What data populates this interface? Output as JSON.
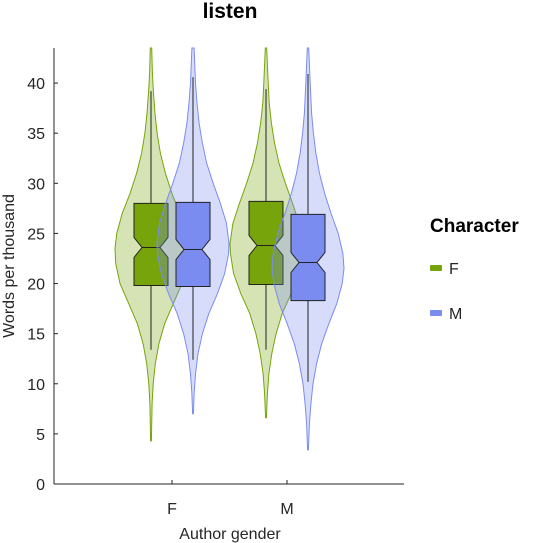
{
  "chart_data": {
    "type": "violin",
    "title": "listen",
    "xlabel": "Author gender",
    "ylabel": "Words per thousand",
    "categories": [
      "F",
      "M"
    ],
    "ylim": [
      0,
      43.5
    ],
    "yticks": [
      0,
      5,
      10,
      15,
      20,
      25,
      30,
      35,
      40
    ],
    "grid": false,
    "legend": {
      "title": "Character",
      "position": "right"
    },
    "series": [
      {
        "name": "F",
        "color": "#76a40a",
        "groups": [
          {
            "category": "F",
            "min": 4.3,
            "whisker_low": 13.4,
            "q1": 19.8,
            "median": 23.6,
            "q3": 28.0,
            "whisker_high": 39.2,
            "max": 43.5,
            "notch": [
              22.6,
              24.6
            ],
            "density": [
              [
                4.3,
                0.01
              ],
              [
                8,
                0.03
              ],
              [
                10,
                0.06
              ],
              [
                12,
                0.12
              ],
              [
                14,
                0.22
              ],
              [
                16,
                0.38
              ],
              [
                18,
                0.62
              ],
              [
                20,
                0.86
              ],
              [
                22,
                0.98
              ],
              [
                23.5,
                1.0
              ],
              [
                25,
                0.95
              ],
              [
                27,
                0.8
              ],
              [
                29,
                0.58
              ],
              [
                31,
                0.4
              ],
              [
                33,
                0.26
              ],
              [
                35,
                0.17
              ],
              [
                37,
                0.11
              ],
              [
                39,
                0.07
              ],
              [
                41,
                0.04
              ],
              [
                43.5,
                0.02
              ]
            ]
          },
          {
            "category": "M",
            "min": 6.6,
            "whisker_low": 13.4,
            "q1": 19.9,
            "median": 23.8,
            "q3": 28.2,
            "whisker_high": 39.4,
            "max": 43.5,
            "notch": [
              22.8,
              24.8
            ],
            "density": [
              [
                6.6,
                0.01
              ],
              [
                9,
                0.04
              ],
              [
                11,
                0.08
              ],
              [
                13,
                0.16
              ],
              [
                15,
                0.28
              ],
              [
                17,
                0.45
              ],
              [
                19,
                0.7
              ],
              [
                21,
                0.9
              ],
              [
                23,
                0.99
              ],
              [
                24,
                1.0
              ],
              [
                26,
                0.92
              ],
              [
                28,
                0.74
              ],
              [
                30,
                0.54
              ],
              [
                32,
                0.36
              ],
              [
                34,
                0.24
              ],
              [
                36,
                0.15
              ],
              [
                38,
                0.09
              ],
              [
                40,
                0.06
              ],
              [
                43.5,
                0.02
              ]
            ]
          }
        ]
      },
      {
        "name": "M",
        "color": "#7b8cf0",
        "groups": [
          {
            "category": "F",
            "min": 7.0,
            "whisker_low": 12.4,
            "q1": 19.7,
            "median": 23.4,
            "q3": 28.1,
            "whisker_high": 40.6,
            "max": 43.5,
            "notch": [
              22.4,
              24.4
            ],
            "density": [
              [
                7,
                0.01
              ],
              [
                9,
                0.03
              ],
              [
                11,
                0.07
              ],
              [
                13,
                0.14
              ],
              [
                15,
                0.26
              ],
              [
                17,
                0.44
              ],
              [
                19,
                0.68
              ],
              [
                21,
                0.88
              ],
              [
                23,
                0.99
              ],
              [
                24,
                1.0
              ],
              [
                26,
                0.93
              ],
              [
                28,
                0.76
              ],
              [
                30,
                0.56
              ],
              [
                32,
                0.38
              ],
              [
                34,
                0.26
              ],
              [
                36,
                0.17
              ],
              [
                38,
                0.11
              ],
              [
                40,
                0.07
              ],
              [
                43.5,
                0.03
              ]
            ]
          },
          {
            "category": "M",
            "min": 3.4,
            "whisker_low": 10.2,
            "q1": 18.3,
            "median": 22.1,
            "q3": 26.9,
            "whisker_high": 40.9,
            "max": 43.5,
            "notch": [
              21.1,
              23.1
            ],
            "density": [
              [
                3.4,
                0.01
              ],
              [
                6,
                0.04
              ],
              [
                8,
                0.08
              ],
              [
                10,
                0.14
              ],
              [
                12,
                0.24
              ],
              [
                14,
                0.38
              ],
              [
                16,
                0.58
              ],
              [
                18,
                0.8
              ],
              [
                20,
                0.95
              ],
              [
                21.5,
                1.0
              ],
              [
                23,
                0.97
              ],
              [
                25,
                0.84
              ],
              [
                27,
                0.64
              ],
              [
                29,
                0.46
              ],
              [
                31,
                0.32
              ],
              [
                33,
                0.22
              ],
              [
                35,
                0.15
              ],
              [
                37,
                0.1
              ],
              [
                40,
                0.06
              ],
              [
                43.5,
                0.02
              ]
            ]
          }
        ]
      }
    ]
  }
}
